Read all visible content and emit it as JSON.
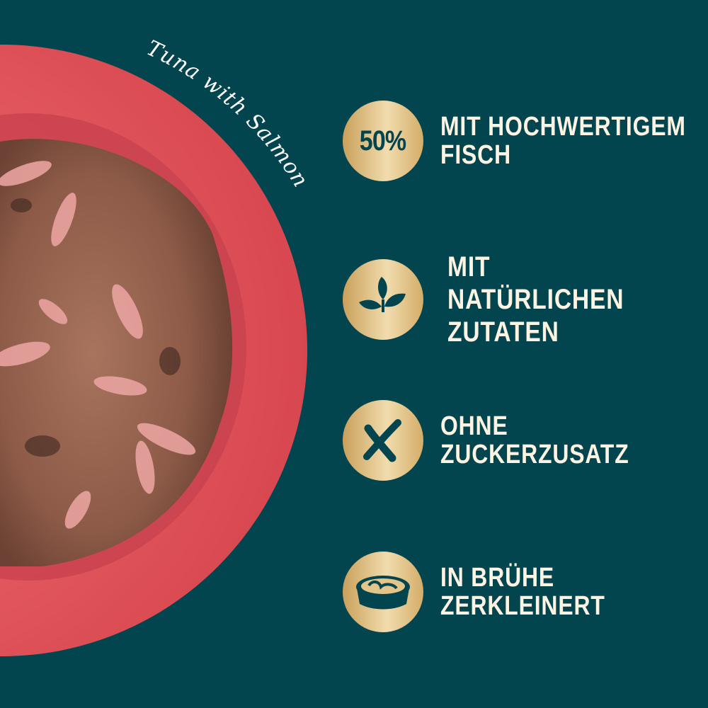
{
  "plate": {
    "label": "Tuna with Salmon"
  },
  "colors": {
    "background": "#03454f",
    "text": "#fcf3e3",
    "badge_gold": "#e3c58a",
    "plate": "#e35a60"
  },
  "features": [
    {
      "icon": "percent-badge",
      "badge_text": "50%",
      "lines": [
        "MIT HOCHWERTIGEM",
        "FISCH"
      ]
    },
    {
      "icon": "leaf-sprout-icon",
      "lines": [
        "MIT",
        "NATÜRLICHEN",
        "ZUTATEN"
      ]
    },
    {
      "icon": "cross-icon",
      "lines": [
        "OHNE",
        "ZUCKERZUSATZ"
      ]
    },
    {
      "icon": "food-bowl-icon",
      "lines": [
        "IN BRÜHE",
        "ZERKLEINERT"
      ]
    }
  ]
}
